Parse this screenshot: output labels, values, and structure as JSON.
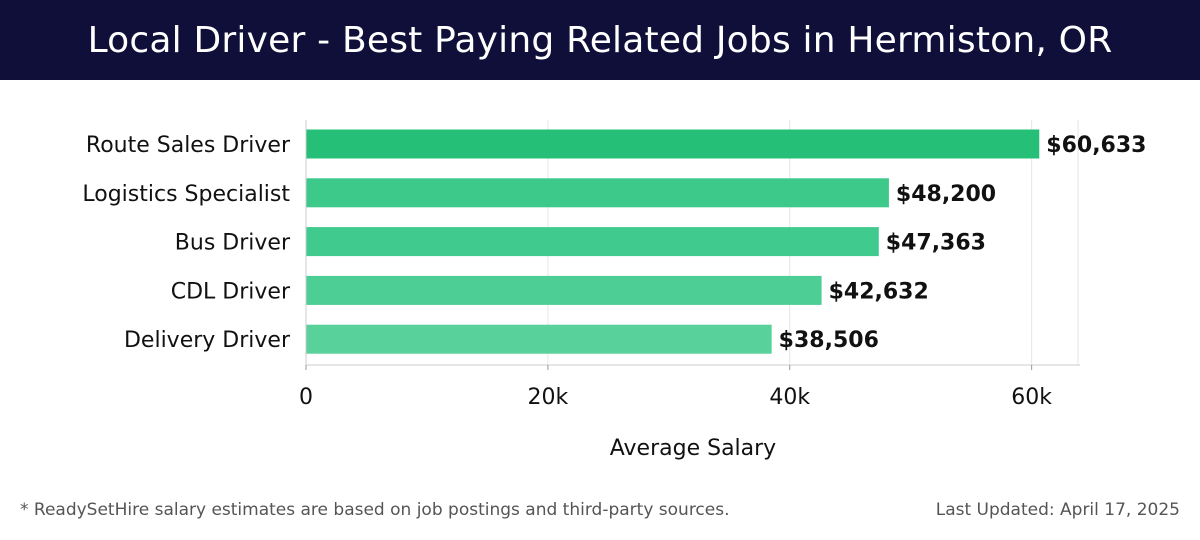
{
  "header": {
    "title": "Local Driver - Best Paying Related Jobs in Hermiston, OR"
  },
  "chart_data": {
    "type": "bar",
    "orientation": "horizontal",
    "title": "Local Driver - Best Paying Related Jobs in Hermiston, OR",
    "xlabel": "Average Salary",
    "ylabel": "",
    "xlim": [
      0,
      64000
    ],
    "grid": true,
    "categories": [
      "Route Sales Driver",
      "Logistics Specialist",
      "Bus Driver",
      "CDL Driver",
      "Delivery Driver"
    ],
    "values": [
      60633,
      48200,
      47363,
      42632,
      38506
    ],
    "value_labels": [
      "$60,633",
      "$48,200",
      "$47,363",
      "$42,632",
      "$38,506"
    ],
    "bar_colors": [
      "#26bf78",
      "#3cc98a",
      "#40ca8d",
      "#4dce94",
      "#58d19b"
    ],
    "xticks": [
      0,
      20000,
      40000,
      60000
    ],
    "xtick_labels": [
      "0",
      "20k",
      "40k",
      "60k"
    ]
  },
  "footer": {
    "note": "* ReadySetHire salary estimates are based on job postings and third-party sources.",
    "updated": "Last Updated: April 17, 2025"
  }
}
